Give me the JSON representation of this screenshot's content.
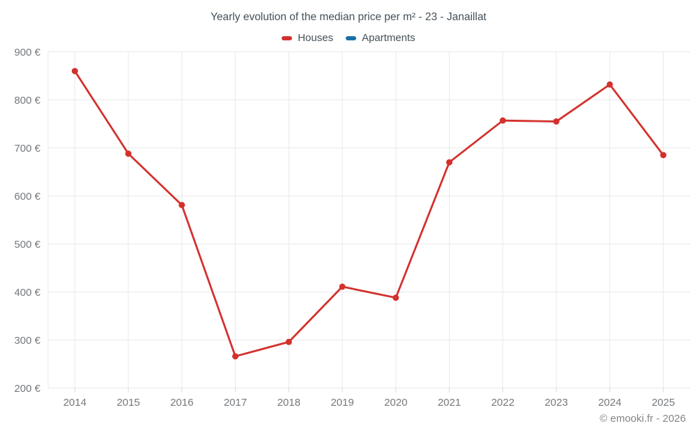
{
  "chart": {
    "title": "Yearly evolution of the median price per m² - 23 - Janaillat"
  },
  "footer": {
    "copyright": "© emooki.fr - 2026"
  },
  "chart_data": {
    "type": "line",
    "title": "Yearly evolution of the median price per m² - 23 - Janaillat",
    "categories": [
      "2014",
      "2015",
      "2016",
      "2017",
      "2018",
      "2019",
      "2020",
      "2021",
      "2022",
      "2023",
      "2024",
      "2025"
    ],
    "series": [
      {
        "name": "Houses",
        "color": "#d3312d",
        "values": [
          860,
          688,
          581,
          266,
          296,
          411,
          388,
          670,
          757,
          755,
          832,
          685
        ]
      },
      {
        "name": "Apartments",
        "color": "#1b6ea5",
        "values": []
      }
    ],
    "xlabel": "",
    "ylabel": "",
    "ylim": [
      200,
      900
    ],
    "y_step": 100,
    "y_suffix": " €",
    "grid": true,
    "legend_position": "top",
    "colors": {
      "grid_line": "#e9e9e9",
      "axis_tick": "#d9d9d9",
      "axis_text": "#75787b",
      "title_text": "#445058",
      "background": "#ffffff"
    },
    "marker_radius": 4.5,
    "line_width": 2.8
  }
}
